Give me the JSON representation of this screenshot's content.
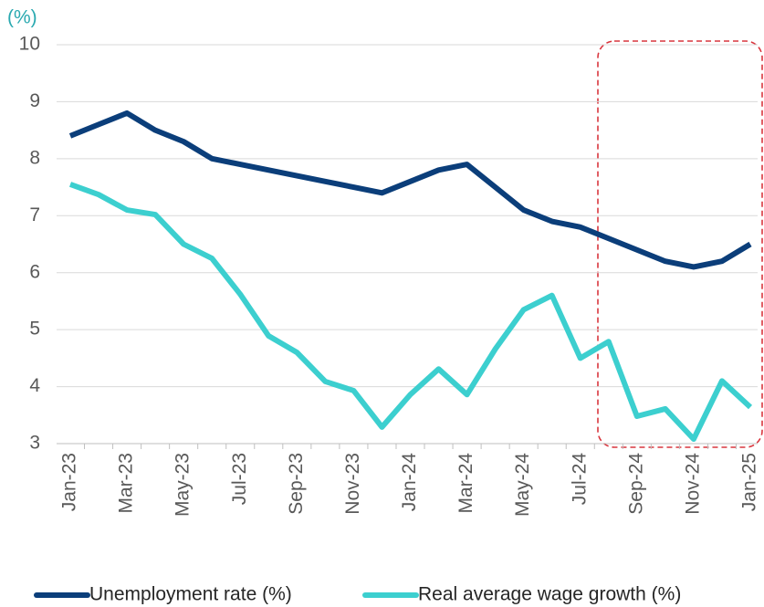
{
  "chart_data": {
    "type": "line",
    "y_label": "(%)",
    "categories": [
      "Jan-23",
      null,
      "Mar-23",
      null,
      "May-23",
      null,
      "Jul-23",
      null,
      "Sep-23",
      null,
      "Nov-23",
      null,
      "Jan-24",
      null,
      "Mar-24",
      null,
      "May-24",
      null,
      "Jul-24",
      null,
      "Sep-24",
      null,
      "Nov-24",
      null,
      "Jan-25"
    ],
    "series": [
      {
        "name": "Unemployment rate (%)",
        "color": "#0b3e7a",
        "values": [
          8.4,
          8.6,
          8.8,
          8.5,
          8.3,
          8.0,
          7.9,
          7.8,
          7.7,
          7.6,
          7.5,
          7.4,
          7.6,
          7.8,
          7.9,
          7.5,
          7.1,
          6.9,
          6.8,
          6.6,
          6.4,
          6.2,
          6.1,
          6.2,
          6.5
        ]
      },
      {
        "name": "Real average wage growth (%)",
        "color": "#3ccfcf",
        "values": [
          7.55,
          7.37,
          7.1,
          7.02,
          6.5,
          6.25,
          5.62,
          4.89,
          4.6,
          4.09,
          3.93,
          3.29,
          3.86,
          4.31,
          3.86,
          4.66,
          5.35,
          5.6,
          4.5,
          4.79,
          3.48,
          3.61,
          3.08,
          4.1,
          3.64
        ]
      }
    ],
    "ylim": [
      3,
      10
    ],
    "yticks": [
      3,
      4,
      5,
      6,
      7,
      8,
      9,
      10
    ],
    "grid": true
  }
}
